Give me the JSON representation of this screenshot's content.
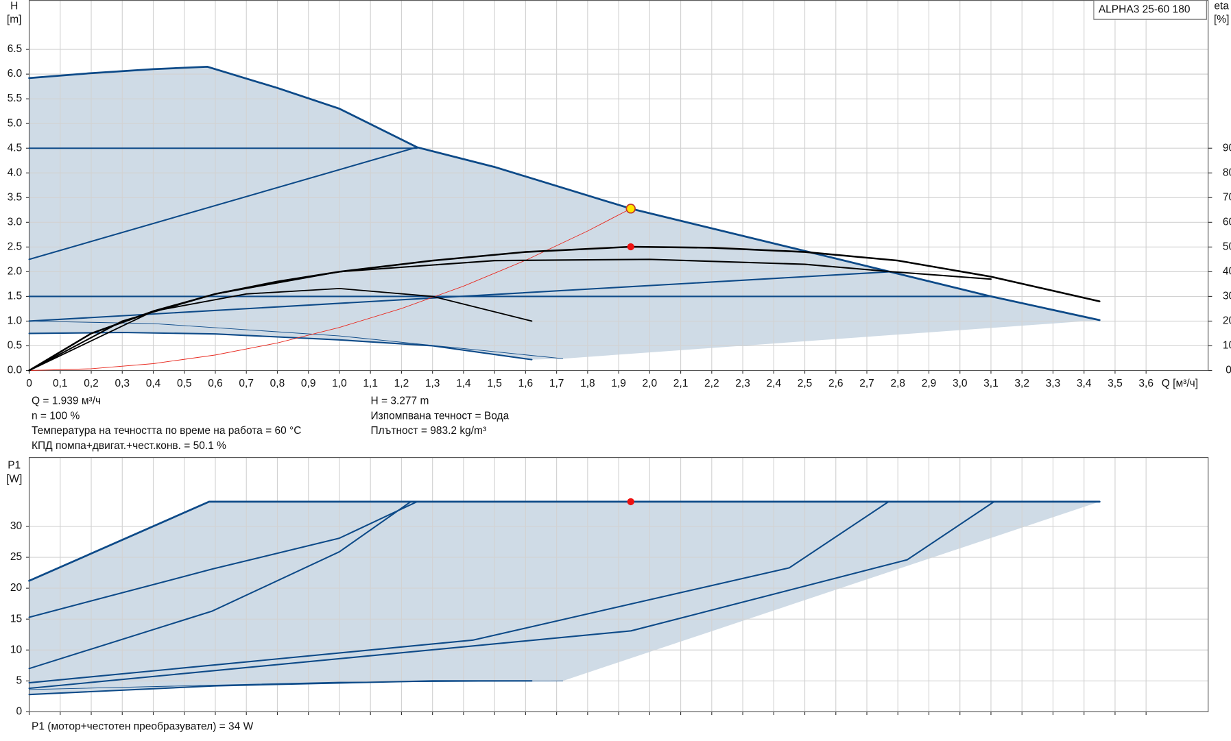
{
  "chart_data": [
    {
      "type": "line",
      "y_label": "H",
      "y_unit": "[m]",
      "y2_label": "eta",
      "y2_unit": "[%]",
      "x_label": "Q [м³/ч]",
      "annotation": "ALPHA3 25-60 180",
      "xlim": [
        0,
        3.8
      ],
      "ylim": [
        0,
        7.5
      ],
      "y2lim": [
        0,
        150
      ],
      "grid": true,
      "show_xtick_labels": true,
      "xticks": [
        0,
        {
          "value": 0.1,
          "label": "0,1"
        },
        {
          "value": 0.2,
          "label": "0,2"
        },
        {
          "value": 0.3,
          "label": "0,3"
        },
        {
          "value": 0.4,
          "label": "0,4"
        },
        {
          "value": 0.5,
          "label": "0,5"
        },
        {
          "value": 0.6,
          "label": "0,6"
        },
        {
          "value": 0.7,
          "label": "0,7"
        },
        {
          "value": 0.8,
          "label": "0,8"
        },
        {
          "value": 0.9,
          "label": "0,9"
        },
        {
          "value": 1.0,
          "label": "1,0"
        },
        {
          "value": 1.1,
          "label": "1,1"
        },
        {
          "value": 1.2,
          "label": "1,2"
        },
        {
          "value": 1.3,
          "label": "1,3"
        },
        {
          "value": 1.4,
          "label": "1,4"
        },
        {
          "value": 1.5,
          "label": "1,5"
        },
        {
          "value": 1.6,
          "label": "1,6"
        },
        {
          "value": 1.7,
          "label": "1,7"
        },
        {
          "value": 1.8,
          "label": "1,8"
        },
        {
          "value": 1.9,
          "label": "1,9"
        },
        {
          "value": 2.0,
          "label": "2,0"
        },
        {
          "value": 2.1,
          "label": "2,1"
        },
        {
          "value": 2.2,
          "label": "2,2"
        },
        {
          "value": 2.3,
          "label": "2,3"
        },
        {
          "value": 2.4,
          "label": "2,4"
        },
        {
          "value": 2.5,
          "label": "2,5"
        },
        {
          "value": 2.6,
          "label": "2,6"
        },
        {
          "value": 2.7,
          "label": "2,7"
        },
        {
          "value": 2.8,
          "label": "2,8"
        },
        {
          "value": 2.9,
          "label": "2,9"
        },
        {
          "value": 3.0,
          "label": "3,0"
        },
        {
          "value": 3.1,
          "label": "3,1"
        },
        {
          "value": 3.2,
          "label": "3,2"
        },
        {
          "value": 3.3,
          "label": "3,3"
        },
        {
          "value": 3.4,
          "label": "3,4"
        },
        {
          "value": 3.5,
          "label": "3,5"
        },
        {
          "value": 3.6,
          "label": "3,6"
        }
      ],
      "yticks": [
        {
          "value": 0,
          "label": "0.0"
        },
        0.5,
        {
          "value": 1,
          "label": "1.0"
        },
        1.5,
        {
          "value": 2,
          "label": "2.0"
        },
        2.5,
        {
          "value": 3,
          "label": "3.0"
        },
        3.5,
        {
          "value": 4,
          "label": "4.0"
        },
        4.5,
        {
          "value": 5,
          "label": "5.0"
        },
        5.5,
        {
          "value": 6,
          "label": "6.0"
        },
        6.5
      ],
      "y2ticks": [
        0,
        10,
        20,
        30,
        40,
        50,
        60,
        70,
        80,
        90
      ],
      "region": {
        "color": "#cfdbe6",
        "x": [
          0,
          0.2,
          0.4,
          0.574,
          0.8,
          1.0,
          1.25,
          1.5,
          1.939,
          2.5,
          3.1,
          3.45,
          1.72,
          1.62,
          1.3,
          1.0,
          0.6,
          0.3,
          0
        ],
        "values": [
          5.92,
          6.02,
          6.1,
          6.15,
          5.72,
          5.3,
          4.52,
          4.12,
          3.277,
          2.42,
          1.5,
          1.02,
          0.24,
          0.22,
          0.5,
          0.62,
          0.74,
          0.77,
          0.75
        ]
      },
      "series": [
        {
          "color": "#0d4a88",
          "linewidth": 2.4,
          "x": [
            0,
            0.2,
            0.4,
            0.574,
            0.8,
            1.0,
            1.25,
            1.5,
            1.939,
            2.5,
            3.1,
            3.45
          ],
          "values": [
            5.92,
            6.02,
            6.1,
            6.15,
            5.72,
            5.3,
            4.52,
            4.12,
            3.277,
            2.42,
            1.5,
            1.02
          ]
        },
        {
          "color": "#0d4a88",
          "linewidth": 1.8,
          "x": [
            0,
            1.25
          ],
          "values": [
            4.5,
            4.5
          ]
        },
        {
          "color": "#0d4a88",
          "linewidth": 1.8,
          "x": [
            0,
            3.1
          ],
          "values": [
            1.5,
            1.5
          ]
        },
        {
          "color": "#0d4a88",
          "linewidth": 1.8,
          "x": [
            0,
            1.25
          ],
          "values": [
            2.25,
            4.52
          ]
        },
        {
          "color": "#0d4a88",
          "linewidth": 1.8,
          "x": [
            0,
            2.78
          ],
          "values": [
            1.0,
            2.0
          ]
        },
        {
          "color": "#0d4a88",
          "linewidth": 1.8,
          "x": [
            0,
            0.3,
            0.6,
            1.0,
            1.3,
            1.62
          ],
          "values": [
            0.75,
            0.77,
            0.74,
            0.62,
            0.5,
            0.22
          ]
        },
        {
          "color": "#0d4a88",
          "linewidth": 0.8,
          "x": [
            0,
            0.4,
            1.0,
            1.72
          ],
          "values": [
            1.0,
            0.95,
            0.7,
            0.24
          ]
        },
        {
          "color": "#e8281e",
          "linewidth": 0.8,
          "x": [
            0,
            0.2,
            0.4,
            0.6,
            0.8,
            1.0,
            1.2,
            1.4,
            1.6,
            1.8,
            1.939
          ],
          "values": [
            0,
            0.035,
            0.139,
            0.314,
            0.558,
            0.872,
            1.255,
            1.708,
            2.231,
            2.824,
            3.277
          ]
        },
        {
          "color": "#000000",
          "linewidth": 2.2,
          "axis": "y2",
          "x": [
            0,
            0.2,
            0.4,
            0.6,
            0.8,
            1.0,
            1.3,
            1.6,
            1.939,
            2.2,
            2.5,
            2.8,
            3.1,
            3.45
          ],
          "values": [
            0,
            15,
            24,
            31,
            36,
            40,
            44.5,
            48,
            50.1,
            49.7,
            48,
            44.5,
            38,
            28
          ]
        },
        {
          "color": "#000000",
          "linewidth": 1.8,
          "axis": "y2",
          "x": [
            0,
            0.3,
            0.6,
            1.0,
            1.5,
            2.0,
            2.5,
            2.78,
            3.1
          ],
          "values": [
            0,
            20,
            31,
            40,
            44.5,
            45,
            43,
            40,
            37
          ]
        },
        {
          "color": "#000000",
          "linewidth": 1.6,
          "axis": "y2",
          "x": [
            0,
            0.4,
            0.7,
            1.0,
            1.3,
            1.62
          ],
          "values": [
            0,
            24,
            31,
            33.2,
            30,
            20
          ]
        }
      ],
      "points": [
        {
          "x": 1.939,
          "value": 3.277,
          "color": "#ffe600"
        },
        {
          "x": 1.939,
          "value": 50.1,
          "axis": "y2",
          "color": "#ee1111"
        }
      ],
      "info_left": [
        "Q = 1.939 м³/ч",
        "n = 100 %",
        "Температура на течността по време на работа = 60 °C",
        "КПД помпа+двигат.+чест.конв. = 50.1 %"
      ],
      "info_right": [
        "H = 3.277 m",
        "Изпомпвана течност = Вода",
        "Плътност = 983.2 kg/m³"
      ]
    },
    {
      "type": "line",
      "y_label": "P1",
      "y_unit": "[W]",
      "xlim": [
        0,
        3.8
      ],
      "ylim": [
        0,
        41.2
      ],
      "grid": true,
      "show_xtick_labels": false,
      "xticks": [
        0,
        0.1,
        0.2,
        0.3,
        0.4,
        0.5,
        0.6,
        0.7,
        0.8,
        0.9,
        1.0,
        1.1,
        1.2,
        1.3,
        1.4,
        1.5,
        1.6,
        1.7,
        1.8,
        1.9,
        2.0,
        2.1,
        2.2,
        2.3,
        2.4,
        2.5,
        2.6,
        2.7,
        2.8,
        2.9,
        3.0,
        3.1,
        3.2,
        3.3,
        3.4,
        3.5,
        3.6
      ],
      "yticks": [
        0,
        5,
        10,
        15,
        20,
        25,
        30
      ],
      "region": {
        "color": "#cfdbe6",
        "x": [
          0,
          0.58,
          3.45,
          1.72,
          1.62,
          1.3,
          0.6,
          0
        ],
        "values": [
          21.2,
          34,
          34,
          5,
          5,
          5,
          4.2,
          2.8
        ]
      },
      "series": [
        {
          "color": "#0d4a88",
          "linewidth": 2.4,
          "x": [
            0,
            0.58,
            3.45
          ],
          "values": [
            21.2,
            34,
            34
          ]
        },
        {
          "color": "#0d4a88",
          "linewidth": 1.8,
          "x": [
            0,
            0.59,
            1.0,
            1.25
          ],
          "values": [
            15.3,
            23.1,
            28.1,
            34
          ]
        },
        {
          "color": "#0d4a88",
          "linewidth": 1.8,
          "x": [
            0,
            0.59,
            1.0,
            1.23
          ],
          "values": [
            7,
            16.3,
            25.9,
            34
          ]
        },
        {
          "color": "#0d4a88",
          "linewidth": 1.8,
          "x": [
            0,
            1.43,
            2.45,
            2.77
          ],
          "values": [
            4.7,
            11.6,
            23.3,
            34
          ]
        },
        {
          "color": "#0d4a88",
          "linewidth": 1.8,
          "x": [
            0,
            1.94,
            2.83,
            3.11
          ],
          "values": [
            3.8,
            13.1,
            24.6,
            34
          ]
        },
        {
          "color": "#0d4a88",
          "linewidth": 1.8,
          "x": [
            0,
            0.6,
            1.3,
            1.62
          ],
          "values": [
            2.8,
            4.2,
            5,
            5
          ]
        },
        {
          "color": "#0d4a88",
          "linewidth": 0.8,
          "x": [
            0,
            1.0,
            1.72
          ],
          "values": [
            3.6,
            4.8,
            5
          ]
        }
      ],
      "points": [
        {
          "x": 1.939,
          "value": 34,
          "color": "#ee1111"
        }
      ],
      "footer": "P1 (мотор+честотен преобразувател) = 34 W"
    }
  ]
}
